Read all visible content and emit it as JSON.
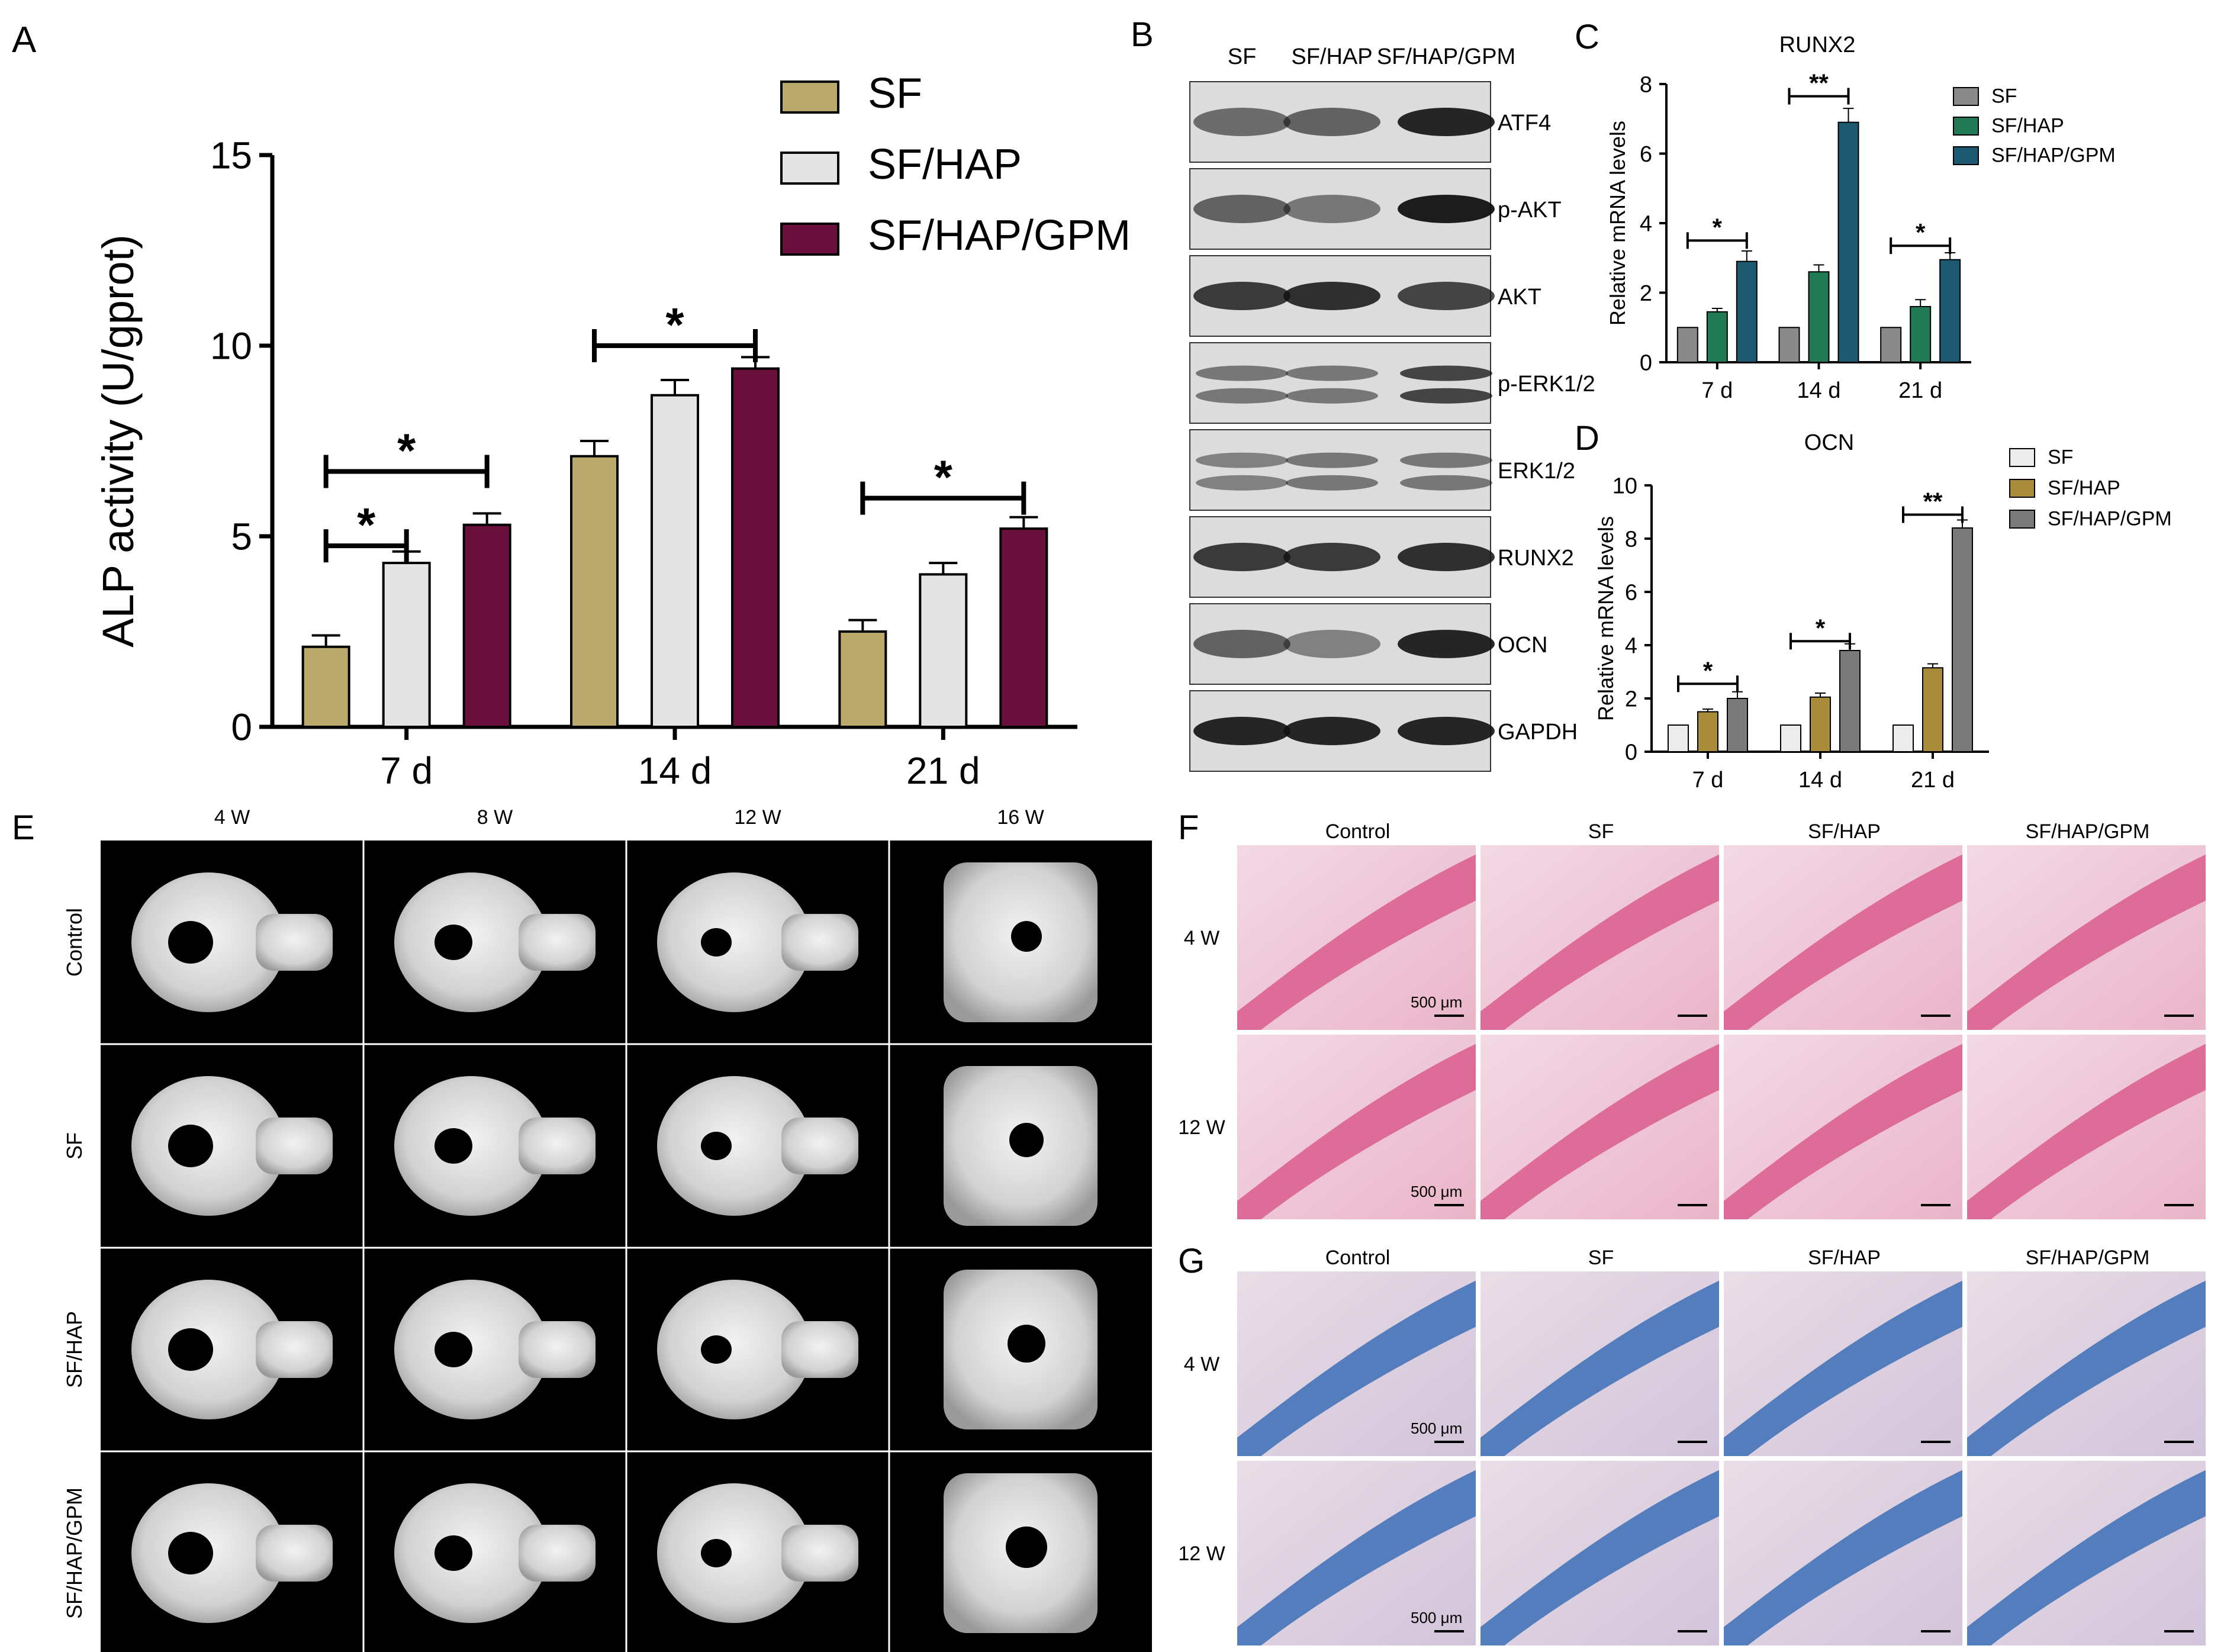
{
  "panels": {
    "A": {
      "letter": "A"
    },
    "B": {
      "letter": "B",
      "columns": [
        "SF",
        "SF/HAP",
        "SF/HAP/GPM"
      ],
      "bands": [
        "ATF4",
        "p-AKT",
        "AKT",
        "p-ERK1/2",
        "ERK1/2",
        "RUNX2",
        "OCN",
        "GAPDH"
      ]
    },
    "C": {
      "letter": "C"
    },
    "D": {
      "letter": "D"
    },
    "E": {
      "letter": "E",
      "columns": [
        "4 W",
        "8 W",
        "12 W",
        "16 W"
      ],
      "rows": [
        "Control",
        "SF",
        "SF/HAP",
        "SF/HAP/GPM"
      ]
    },
    "F": {
      "letter": "F",
      "columns": [
        "Control",
        "SF",
        "SF/HAP",
        "SF/HAP/GPM"
      ],
      "rows": [
        "4 W",
        "12 W"
      ],
      "scale_bar": "500 μm"
    },
    "G": {
      "letter": "G",
      "columns": [
        "Control",
        "SF",
        "SF/HAP",
        "SF/HAP/GPM"
      ],
      "rows": [
        "4 W",
        "12 W"
      ],
      "scale_bar": "500 μm"
    }
  },
  "chart_data": [
    {
      "id": "A",
      "type": "bar",
      "title": "",
      "categories": [
        "7 d",
        "14 d",
        "21 d"
      ],
      "ylabel": "ALP activity (U/gprot)",
      "ylim": [
        0,
        15
      ],
      "yticks": [
        0,
        5,
        10,
        15
      ],
      "legend_position": "top-right",
      "series": [
        {
          "name": "SF",
          "color": "#b9a96d",
          "values": [
            2.1,
            7.1,
            2.5
          ],
          "errors": [
            0.3,
            0.4,
            0.3
          ]
        },
        {
          "name": "SF/HAP",
          "color": "#e4e4e4",
          "values": [
            4.3,
            8.7,
            4.0
          ],
          "errors": [
            0.3,
            0.4,
            0.3
          ]
        },
        {
          "name": "SF/HAP/GPM",
          "color": "#6b0f3c",
          "values": [
            5.3,
            9.4,
            5.2
          ],
          "errors": [
            0.3,
            0.3,
            0.3
          ]
        }
      ],
      "significance": [
        {
          "group": 0,
          "from": 0,
          "to": 1,
          "label": "*",
          "level": 4.3,
          "gap": 0.45
        },
        {
          "group": 0,
          "from": 0,
          "to": 2,
          "label": "*",
          "level": 5.3,
          "gap": 1.4
        },
        {
          "group": 1,
          "from": 0,
          "to": 2,
          "label": "*",
          "level": 9.4,
          "gap": 0.6
        },
        {
          "group": 2,
          "from": 0,
          "to": 2,
          "label": "*",
          "level": 5.2,
          "gap": 0.8
        }
      ]
    },
    {
      "id": "C",
      "type": "bar",
      "title": "RUNX2",
      "categories": [
        "7 d",
        "14 d",
        "21 d"
      ],
      "ylabel": "Relative mRNA levels",
      "ylim": [
        0,
        8
      ],
      "yticks": [
        0,
        2,
        4,
        6,
        8
      ],
      "legend_position": "top-right",
      "series": [
        {
          "name": "SF",
          "color": "#8a8a8a",
          "values": [
            1.0,
            1.0,
            1.0
          ],
          "errors": [
            0,
            0,
            0
          ]
        },
        {
          "name": "SF/HAP",
          "color": "#1f7a55",
          "values": [
            1.45,
            2.6,
            1.6
          ],
          "errors": [
            0.1,
            0.2,
            0.2
          ]
        },
        {
          "name": "SF/HAP/GPM",
          "color": "#1d5a72",
          "values": [
            2.9,
            6.9,
            2.95
          ],
          "errors": [
            0.3,
            0.4,
            0.2
          ]
        }
      ],
      "significance": [
        {
          "group": 0,
          "from": 0,
          "to": 2,
          "label": "*",
          "level": 2.9,
          "gap": 0.6
        },
        {
          "group": 1,
          "from": 0,
          "to": 2,
          "label": "**",
          "level": 6.9,
          "gap": 0.75
        },
        {
          "group": 2,
          "from": 0,
          "to": 2,
          "label": "*",
          "level": 2.95,
          "gap": 0.4
        }
      ]
    },
    {
      "id": "D",
      "type": "bar",
      "title": "OCN",
      "categories": [
        "7 d",
        "14 d",
        "21 d"
      ],
      "ylabel": "Relative mRNA levels",
      "ylim": [
        0,
        10
      ],
      "yticks": [
        0,
        2,
        4,
        6,
        8,
        10
      ],
      "legend_position": "top-right",
      "series": [
        {
          "name": "SF",
          "color": "#ececec",
          "values": [
            1.0,
            1.0,
            1.0
          ],
          "errors": [
            0,
            0,
            0
          ]
        },
        {
          "name": "SF/HAP",
          "color": "#a88c3a",
          "values": [
            1.5,
            2.05,
            3.15
          ],
          "errors": [
            0.1,
            0.15,
            0.15
          ]
        },
        {
          "name": "SF/HAP/GPM",
          "color": "#7a7a7a",
          "values": [
            2.0,
            3.8,
            8.4
          ],
          "errors": [
            0.25,
            0.25,
            0.3
          ]
        }
      ],
      "significance": [
        {
          "group": 0,
          "from": 0,
          "to": 2,
          "label": "*",
          "level": 2.0,
          "gap": 0.55
        },
        {
          "group": 1,
          "from": 0,
          "to": 2,
          "label": "*",
          "level": 3.8,
          "gap": 0.35
        },
        {
          "group": 2,
          "from": 0,
          "to": 2,
          "label": "**",
          "level": 8.4,
          "gap": 0.5
        }
      ]
    }
  ]
}
